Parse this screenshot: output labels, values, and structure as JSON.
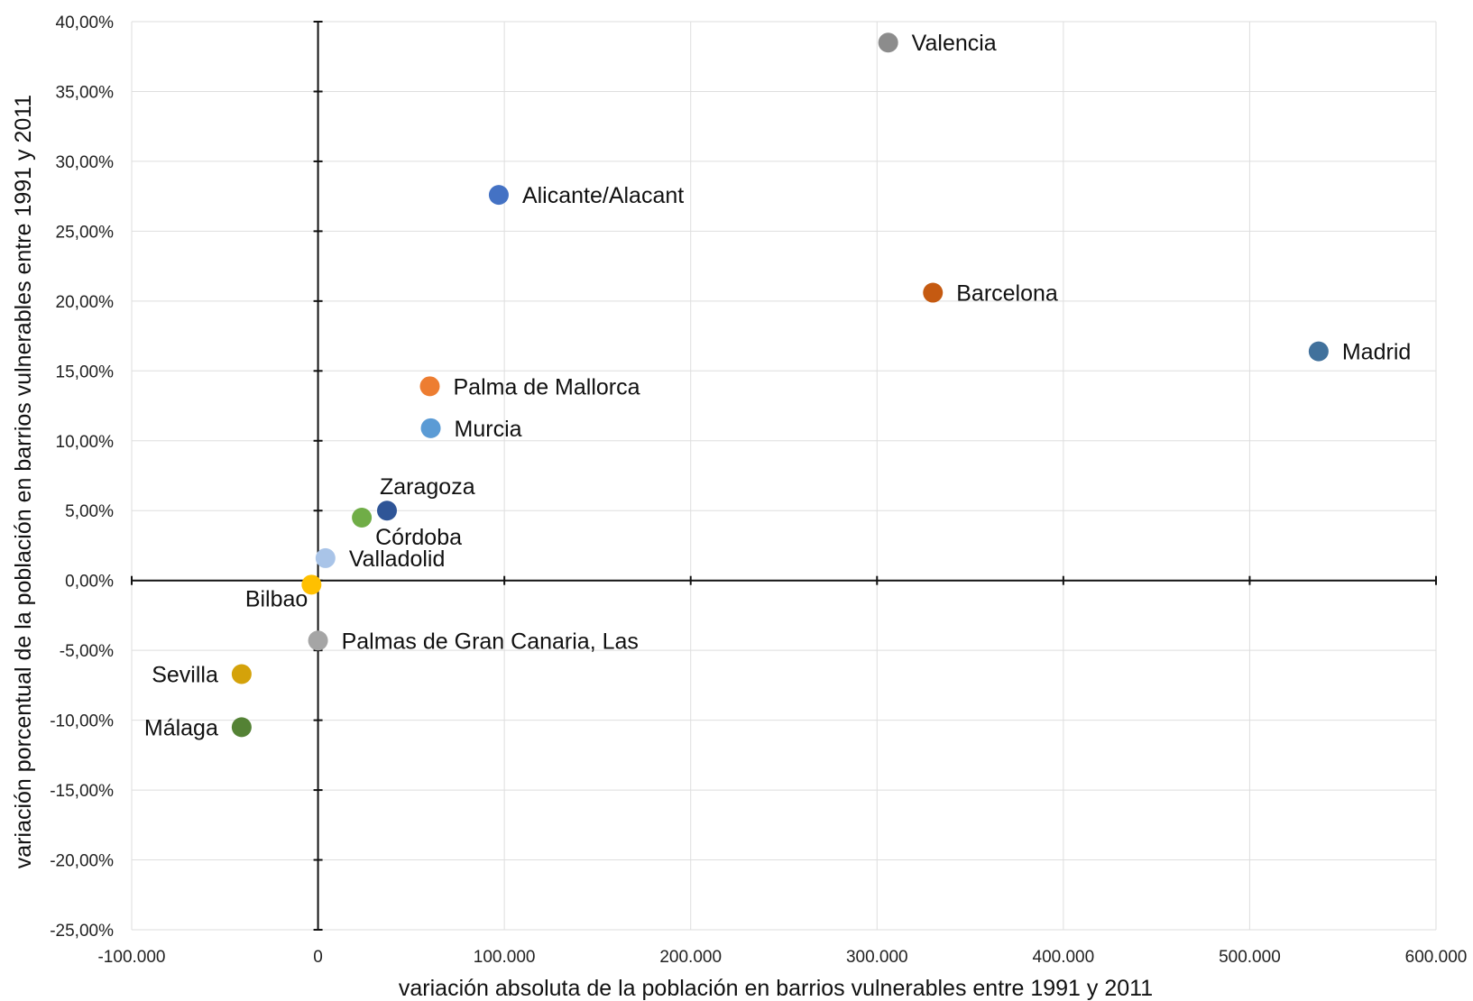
{
  "chart_data": {
    "type": "scatter",
    "title": "",
    "xlabel": "variación absoluta de la población en barrios vulnerables entre 1991 y 2011",
    "ylabel": "variación porcentual de la población en barrios vulnerables entre 1991 y 2011",
    "xlim": [
      -100000,
      600000
    ],
    "ylim": [
      -25,
      40
    ],
    "x_ticks": [
      {
        "value": -100000,
        "label": "-100.000"
      },
      {
        "value": 0,
        "label": "0"
      },
      {
        "value": 100000,
        "label": "100.000"
      },
      {
        "value": 200000,
        "label": "200.000"
      },
      {
        "value": 300000,
        "label": "300.000"
      },
      {
        "value": 400000,
        "label": "400.000"
      },
      {
        "value": 500000,
        "label": "500.000"
      },
      {
        "value": 600000,
        "label": "600.000"
      }
    ],
    "y_ticks": [
      {
        "value": 40,
        "label": "40,00%"
      },
      {
        "value": 35,
        "label": "35,00%"
      },
      {
        "value": 30,
        "label": "30,00%"
      },
      {
        "value": 25,
        "label": "25,00%"
      },
      {
        "value": 20,
        "label": "20,00%"
      },
      {
        "value": 15,
        "label": "15,00%"
      },
      {
        "value": 10,
        "label": "10,00%"
      },
      {
        "value": 5,
        "label": "5,00%"
      },
      {
        "value": 0,
        "label": "0,00%"
      },
      {
        "value": -5,
        "label": "-5,00%"
      },
      {
        "value": -10,
        "label": "-10,00%"
      },
      {
        "value": -15,
        "label": "-15,00%"
      },
      {
        "value": -20,
        "label": "-20,00%"
      },
      {
        "value": -25,
        "label": "-25,00%"
      }
    ],
    "grid": true,
    "legend": "none",
    "points": [
      {
        "name": "Valencia",
        "x": 306000,
        "y": 38.5,
        "color": "#8c8c8c",
        "label_side": "right"
      },
      {
        "name": "Alicante/Alacant",
        "x": 97000,
        "y": 27.6,
        "color": "#4472c4",
        "label_side": "right"
      },
      {
        "name": "Barcelona",
        "x": 330000,
        "y": 20.6,
        "color": "#c55a11",
        "label_side": "right"
      },
      {
        "name": "Madrid",
        "x": 537000,
        "y": 16.4,
        "color": "#41719c",
        "label_side": "right"
      },
      {
        "name": "Palma de Mallorca",
        "x": 60000,
        "y": 13.9,
        "color": "#ed7d31",
        "label_side": "right"
      },
      {
        "name": "Murcia",
        "x": 60500,
        "y": 10.9,
        "color": "#5b9bd5",
        "label_side": "right"
      },
      {
        "name": "Zaragoza",
        "x": 37000,
        "y": 5.0,
        "color": "#2f5597",
        "label_side": "above"
      },
      {
        "name": "Córdoba",
        "x": 23500,
        "y": 4.5,
        "color": "#70ad47",
        "label_side": "below-right"
      },
      {
        "name": "Valladolid",
        "x": 4000,
        "y": 1.6,
        "color": "#a9c4e8",
        "label_side": "right"
      },
      {
        "name": "Bilbao",
        "x": -3500,
        "y": -0.3,
        "color": "#ffc000",
        "label_side": "below-left"
      },
      {
        "name": "Palmas de Gran Canaria, Las",
        "x": 0,
        "y": -4.3,
        "color": "#a5a5a5",
        "label_side": "right"
      },
      {
        "name": "Sevilla",
        "x": -41000,
        "y": -6.7,
        "color": "#d4a20a",
        "label_side": "left"
      },
      {
        "name": "Málaga",
        "x": -41000,
        "y": -10.5,
        "color": "#548235",
        "label_side": "left"
      }
    ]
  }
}
